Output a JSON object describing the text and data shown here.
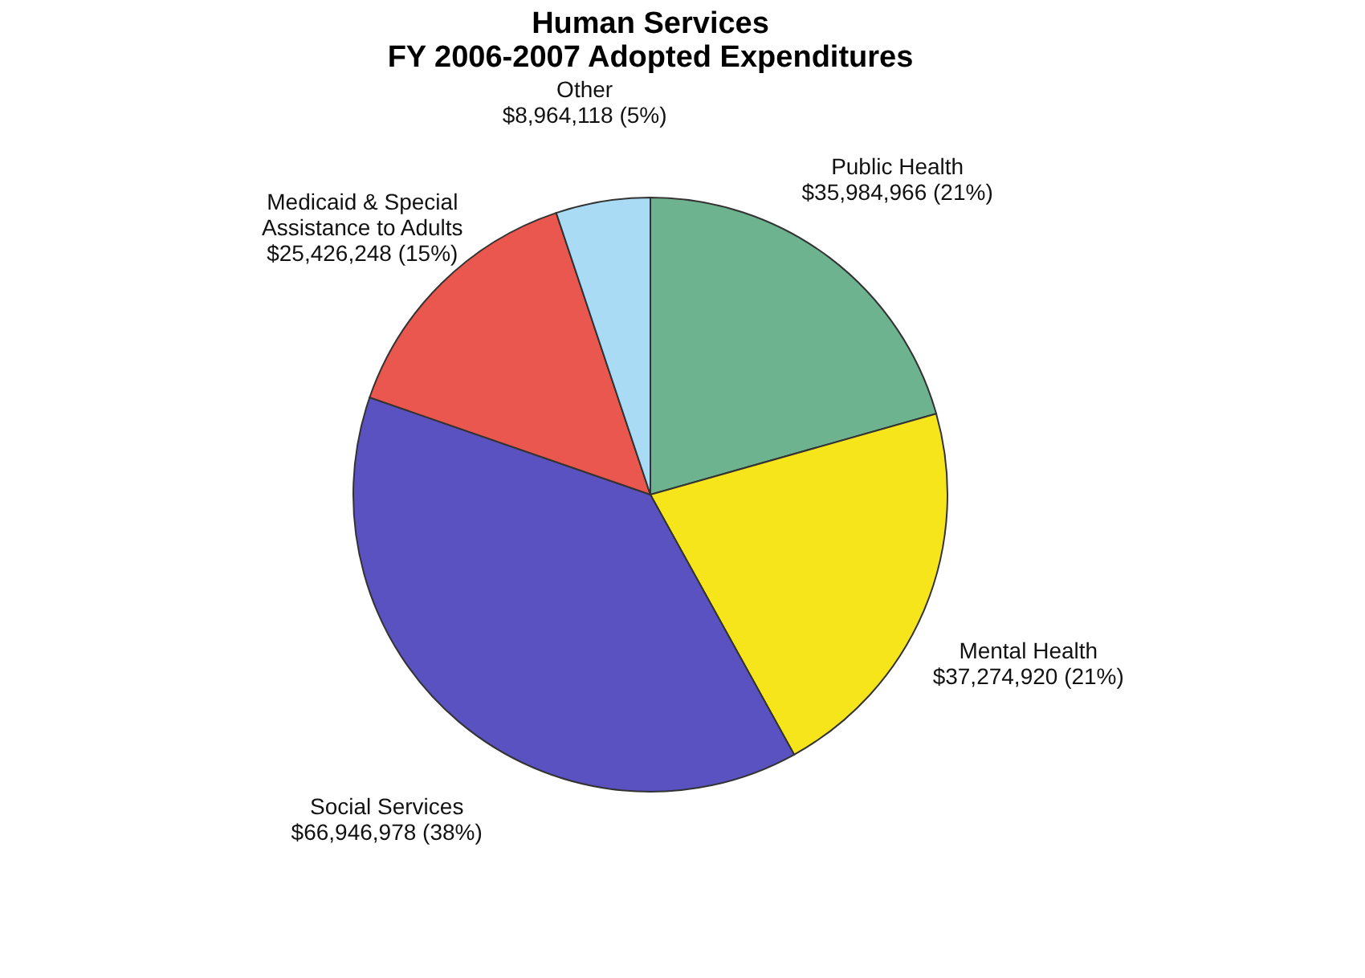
{
  "chart_data": {
    "type": "pie",
    "title": [
      "Human Services",
      "FY 2006-2007 Adopted Expenditures"
    ],
    "categories": [
      "Public Health",
      "Mental Health",
      "Social Services",
      "Medicaid & Special Assistance to Adults",
      "Other"
    ],
    "values": [
      35984966,
      37274920,
      66946978,
      25426248,
      8964118
    ],
    "value_labels": [
      "$35,984,966 (21%)",
      "$37,274,920 (21%)",
      "$66,946,978 (38%)",
      "$25,426,248 (15%)",
      "$8,964,118 (5%)"
    ],
    "colors": [
      "#6db38f",
      "#f7e51b",
      "#5b52c2",
      "#e9574e",
      "#a9dcf4"
    ],
    "legend": false
  }
}
